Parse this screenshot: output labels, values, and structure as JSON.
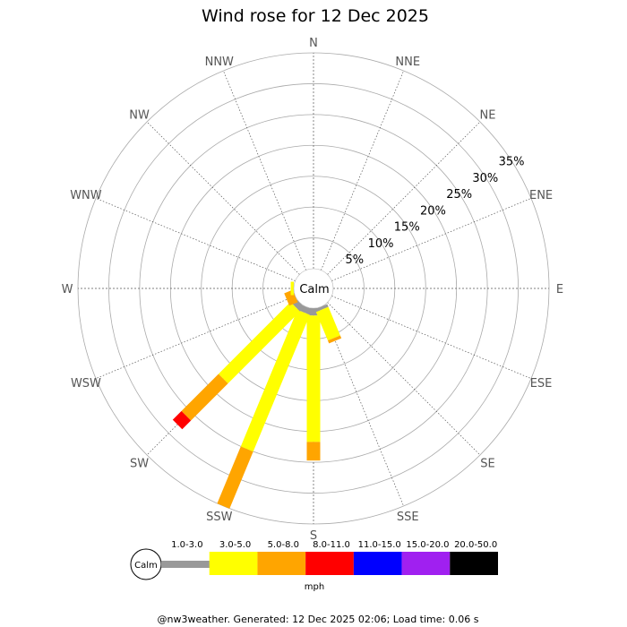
{
  "chart_data": {
    "type": "wind-rose",
    "title": "Wind rose for 12 Dec 2025",
    "calm_label": "Calm",
    "directions": [
      "N",
      "NNE",
      "NE",
      "ENE",
      "E",
      "ESE",
      "SE",
      "SSE",
      "S",
      "SSW",
      "SW",
      "WSW",
      "W",
      "WNW",
      "NW",
      "NNW"
    ],
    "radial_ticks": [
      "5%",
      "10%",
      "15%",
      "20%",
      "25%",
      "30%",
      "35%"
    ],
    "radial_values": [
      5,
      10,
      15,
      20,
      25,
      30,
      35
    ],
    "bins": [
      {
        "label": "1.0-3.0",
        "color": "#999999"
      },
      {
        "label": "3.0-5.0",
        "color": "#ffff00"
      },
      {
        "label": "5.0-8.0",
        "color": "#ffa500"
      },
      {
        "label": "8.0-11.0",
        "color": "#ff0000"
      },
      {
        "label": "11.0-15.0",
        "color": "#0000ff"
      },
      {
        "label": "15.0-20.0",
        "color": "#a020f0"
      },
      {
        "label": "20.0-50.0",
        "color": "#000000"
      }
    ],
    "unit_label": "mph",
    "series": [
      {
        "direction": "S",
        "values": [
          1.2,
          20.5,
          3.0,
          0,
          0,
          0,
          0
        ]
      },
      {
        "direction": "SSE",
        "values": [
          0.5,
          5.0,
          0.5,
          0,
          0,
          0,
          0
        ]
      },
      {
        "direction": "SSW",
        "values": [
          1.0,
          24.0,
          10.0,
          0,
          0,
          0,
          0
        ]
      },
      {
        "direction": "SW",
        "values": [
          1.0,
          16.5,
          8.5,
          2.0,
          0,
          0,
          0
        ]
      },
      {
        "direction": "WSW",
        "values": [
          0,
          0,
          1.5,
          0,
          0,
          0,
          0
        ]
      },
      {
        "direction": "W",
        "values": [
          0,
          0.5,
          0,
          0,
          0,
          0,
          0
        ]
      }
    ]
  },
  "footer": "@nw3weather. Generated: 12 Dec 2025 02:06; Load time: 0.06 s"
}
